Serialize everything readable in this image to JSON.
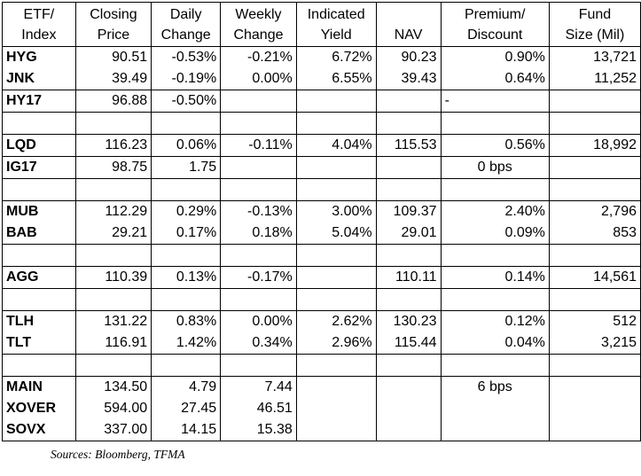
{
  "table": {
    "headers": [
      [
        "ETF/",
        "Index"
      ],
      [
        "Closing",
        "Price"
      ],
      [
        "Daily",
        "Change"
      ],
      [
        "Weekly",
        "Change"
      ],
      [
        "Indicated",
        "Yield"
      ],
      [
        "",
        "NAV"
      ],
      [
        "Premium/",
        "Discount"
      ],
      [
        "Fund",
        "Size (Mil)"
      ]
    ],
    "groups": [
      {
        "rows": [
          [
            "HYG",
            "90.51",
            "-0.53%",
            "-0.21%",
            "6.72%",
            "90.23",
            "0.90%",
            "13,721"
          ],
          [
            "JNK",
            "39.49",
            "-0.19%",
            "0.00%",
            "6.55%",
            "39.43",
            "0.64%",
            "11,252"
          ]
        ]
      },
      {
        "rows": [
          [
            "HY17",
            "96.88",
            "-0.50%",
            "",
            "",
            "",
            "-",
            ""
          ]
        ]
      },
      {
        "spacer": true
      },
      {
        "rows": [
          [
            "LQD",
            "116.23",
            "0.06%",
            "-0.11%",
            "4.04%",
            "115.53",
            "0.56%",
            "18,992"
          ]
        ]
      },
      {
        "rows": [
          [
            "IG17",
            "98.75",
            "1.75",
            "",
            "",
            "",
            "0 bps",
            ""
          ]
        ]
      },
      {
        "spacer": true
      },
      {
        "rows": [
          [
            "MUB",
            "112.29",
            "0.29%",
            "-0.13%",
            "3.00%",
            "109.37",
            "2.40%",
            "2,796"
          ],
          [
            "BAB",
            "29.21",
            "0.17%",
            "0.18%",
            "5.04%",
            "29.01",
            "0.09%",
            "853"
          ]
        ]
      },
      {
        "spacer": true
      },
      {
        "rows": [
          [
            "AGG",
            "110.39",
            "0.13%",
            "-0.17%",
            "",
            "110.11",
            "0.14%",
            "14,561"
          ]
        ]
      },
      {
        "spacer": true
      },
      {
        "rows": [
          [
            "TLH",
            "131.22",
            "0.83%",
            "0.00%",
            "2.62%",
            "130.23",
            "0.12%",
            "512"
          ],
          [
            "TLT",
            "116.91",
            "1.42%",
            "0.34%",
            "2.96%",
            "115.44",
            "0.04%",
            "3,215"
          ]
        ]
      },
      {
        "spacer": true
      },
      {
        "rows": [
          [
            "MAIN",
            "134.50",
            "4.79",
            "7.44",
            "",
            "",
            "6 bps",
            ""
          ],
          [
            "XOVER",
            "594.00",
            "27.45",
            "46.51",
            "",
            "",
            "",
            ""
          ],
          [
            "SOVX",
            "337.00",
            "14.15",
            "15.38",
            "",
            "",
            "",
            ""
          ]
        ]
      }
    ]
  },
  "caption": "Sources: Bloomberg, TFMA"
}
